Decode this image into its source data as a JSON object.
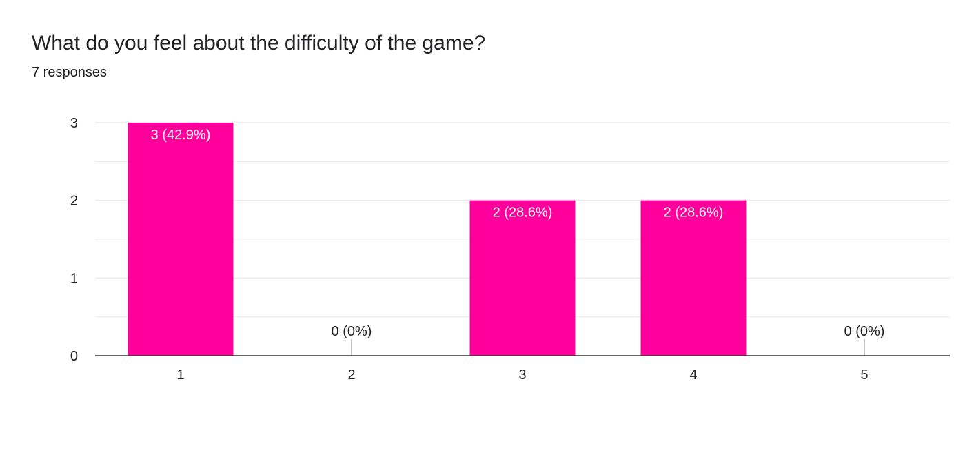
{
  "header": {
    "question": "What do you feel about the difficulty of the game?",
    "responses": "7 responses"
  },
  "colors": {
    "bar": "#ff009d",
    "grid": "#e6e6e6",
    "axis": "#333333",
    "label_inside": "#ffffff",
    "label_outside": "#222222"
  },
  "chart_data": {
    "type": "bar",
    "title": "What do you feel about the difficulty of the game?",
    "categories": [
      "1",
      "2",
      "3",
      "4",
      "5"
    ],
    "values": [
      3,
      0,
      2,
      2,
      0
    ],
    "data_labels": [
      "3 (42.9%)",
      "0 (0%)",
      "2 (28.6%)",
      "2 (28.6%)",
      "0 (0%)"
    ],
    "ylim": [
      0,
      3
    ],
    "yticks": [
      0,
      1,
      2,
      3
    ],
    "xlabel": "",
    "ylabel": "",
    "grid": true,
    "legend": "none"
  }
}
